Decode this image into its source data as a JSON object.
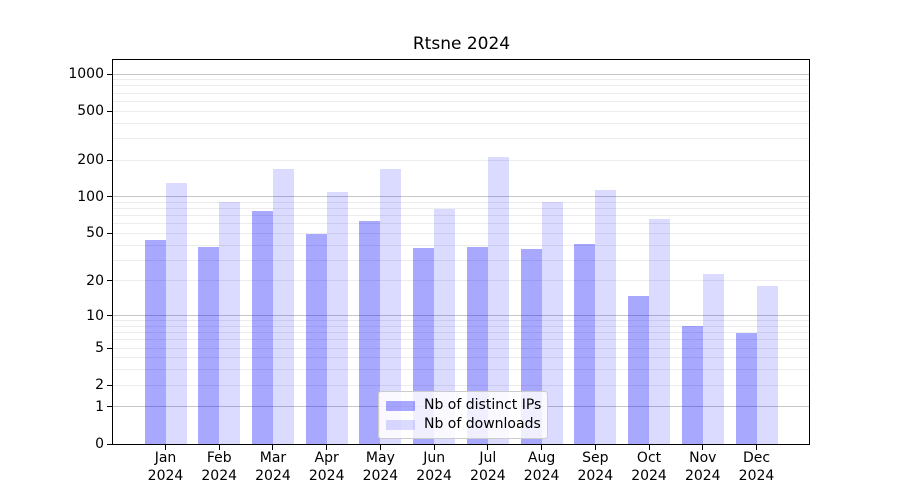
{
  "chart_data": {
    "type": "bar",
    "title": "Rtsne 2024",
    "categories": [
      "Jan 2024",
      "Feb 2024",
      "Mar 2024",
      "Apr 2024",
      "May 2024",
      "Jun 2024",
      "Jul 2024",
      "Aug 2024",
      "Sep 2024",
      "Oct 2024",
      "Nov 2024",
      "Dec 2024"
    ],
    "series": [
      {
        "name": "Nb of distinct IPs",
        "color": "rgba(0,0,255,0.34)",
        "solid_color": "#a8a8f8",
        "values": [
          44,
          39,
          77,
          50,
          64,
          38,
          39,
          37,
          41,
          15,
          8,
          7
        ]
      },
      {
        "name": "Nb of downloads",
        "color": "rgba(0,0,255,0.14)",
        "solid_color": "#d8d8fa",
        "values": [
          130,
          91,
          170,
          110,
          170,
          80,
          210,
          90,
          114,
          66,
          23,
          18
        ]
      }
    ],
    "y_axis": {
      "scale": "log1p",
      "ylim": [
        0,
        1300
      ],
      "tick_values": [
        0,
        1,
        2,
        5,
        10,
        20,
        50,
        100,
        200,
        500,
        1000
      ],
      "major_grid_values": [
        1,
        10,
        100,
        1000
      ],
      "minor_grid_values": [
        2,
        3,
        4,
        5,
        6,
        7,
        8,
        9,
        20,
        30,
        40,
        50,
        60,
        70,
        80,
        90,
        200,
        300,
        400,
        500,
        600,
        700,
        800,
        900
      ]
    },
    "legend_position": "lower center",
    "grid": true
  },
  "colors": {
    "major_grid": "#c6c6c6",
    "minor_grid": "#ececec",
    "axis": "#000000",
    "legend_border": "#cccccc",
    "text": "#000000"
  }
}
